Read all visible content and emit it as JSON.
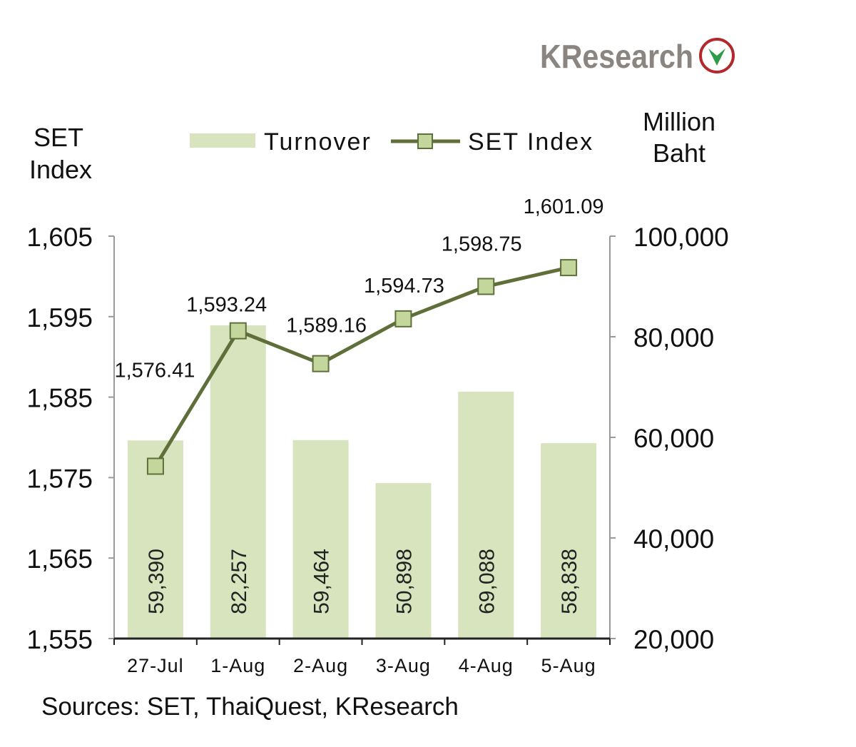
{
  "logo": {
    "text": "KResearch",
    "colors": {
      "text": "#8a8580",
      "ring": "#b3282d",
      "leaf": "#2e9b4a"
    }
  },
  "chart_data": {
    "type": "bar+line",
    "categories": [
      "27-Jul",
      "1-Aug",
      "2-Aug",
      "3-Aug",
      "4-Aug",
      "5-Aug"
    ],
    "series": [
      {
        "name": "Turnover",
        "type": "bar",
        "axis": "right",
        "values": [
          59390,
          82257,
          59464,
          50898,
          69088,
          58838
        ],
        "labels": [
          "59,390",
          "82,257",
          "59,464",
          "50,898",
          "69,088",
          "58,838"
        ],
        "color": "#d7e4bd"
      },
      {
        "name": "SET Index",
        "type": "line",
        "axis": "left",
        "values": [
          1576.41,
          1593.24,
          1589.16,
          1594.73,
          1598.75,
          1601.09
        ],
        "labels": [
          "1,576.41",
          "1,593.24",
          "1,589.16",
          "1,594.73",
          "1,598.75",
          "1,601.09"
        ],
        "color": "#5f6f3a",
        "marker_fill": "#c3d69b"
      }
    ],
    "left_axis": {
      "title_line1": "SET",
      "title_line2": "Index",
      "range": [
        1555,
        1605
      ],
      "ticks": [
        "1,555",
        "1,565",
        "1,575",
        "1,585",
        "1,595",
        "1,605"
      ]
    },
    "right_axis": {
      "title_line1": "Million",
      "title_line2": "Baht",
      "range": [
        20000,
        100000
      ],
      "ticks": [
        "20,000",
        "40,000",
        "60,000",
        "80,000",
        "100,000"
      ]
    },
    "legend": {
      "position": "top",
      "items": [
        "Turnover",
        "SET Index"
      ]
    },
    "grid": false,
    "source": "Sources: SET, ThaiQuest, KResearch"
  }
}
